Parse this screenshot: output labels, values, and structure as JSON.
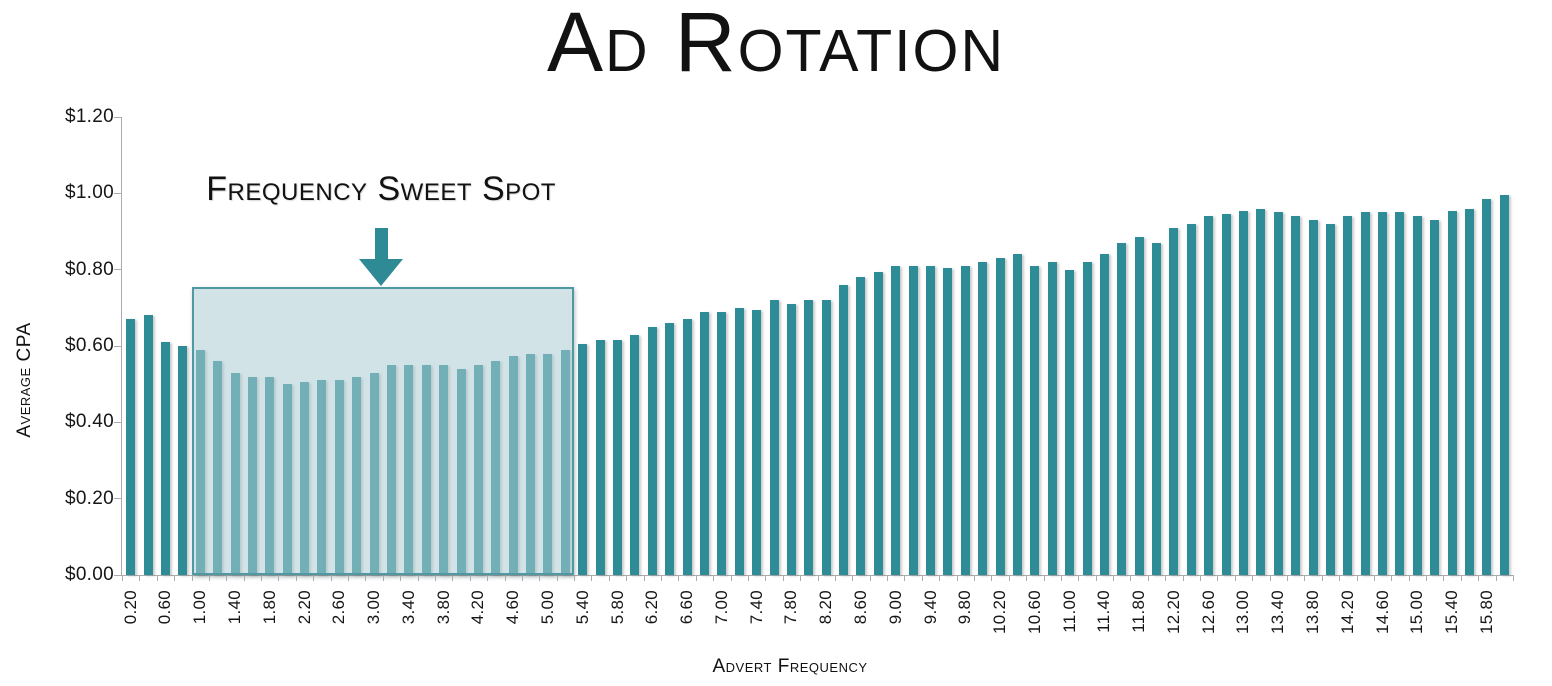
{
  "title": "Ad Rotation",
  "annotation": {
    "label": "Frequency Sweet Spot"
  },
  "y_axis": {
    "label": "Average CPA",
    "tick_labels": [
      "$1.20",
      "$1.00",
      "$0.80",
      "$0.60",
      "$0.40",
      "$0.20",
      "$0.00"
    ]
  },
  "x_axis": {
    "label": "Advert Frequency",
    "shown_tick_labels": [
      "0.20",
      "0.60",
      "1.00",
      "1.40",
      "1.80",
      "2.20",
      "2.60",
      "3.00",
      "3.40",
      "3.80",
      "4.20",
      "4.60",
      "5.00",
      "5.40",
      "5.80",
      "6.20",
      "6.60",
      "7.00",
      "7.40",
      "7.80",
      "8.20",
      "8.60",
      "9.00",
      "9.40",
      "9.80",
      "10.20",
      "10.60",
      "11.00",
      "11.40",
      "11.80",
      "12.20",
      "12.60",
      "13.00",
      "13.40",
      "13.80",
      "14.20",
      "14.60",
      "15.00",
      "15.40",
      "15.80"
    ]
  },
  "colors": {
    "bar": "#2e8c96",
    "highlight_fill": "rgba(172,204,209,0.55)",
    "highlight_border": "#4f99a2",
    "axis": "#a9adaf",
    "text": "#121212"
  },
  "chart_data": {
    "type": "bar",
    "title": "Ad Rotation",
    "xlabel": "Advert Frequency",
    "ylabel": "Average CPA",
    "ylim": [
      0,
      1.2
    ],
    "y_tick_step": 0.2,
    "grid": false,
    "legend": false,
    "x_label_every_n_bars": 2,
    "categories": [
      "0.20",
      "0.40",
      "0.60",
      "0.80",
      "1.00",
      "1.20",
      "1.40",
      "1.60",
      "1.80",
      "2.00",
      "2.20",
      "2.40",
      "2.60",
      "2.80",
      "3.00",
      "3.20",
      "3.40",
      "3.60",
      "3.80",
      "4.00",
      "4.20",
      "4.40",
      "4.60",
      "4.80",
      "5.00",
      "5.20",
      "5.40",
      "5.60",
      "5.80",
      "6.00",
      "6.20",
      "6.40",
      "6.60",
      "6.80",
      "7.00",
      "7.20",
      "7.40",
      "7.60",
      "7.80",
      "8.00",
      "8.20",
      "8.40",
      "8.60",
      "8.80",
      "9.00",
      "9.20",
      "9.40",
      "9.60",
      "9.80",
      "10.00",
      "10.20",
      "10.40",
      "10.60",
      "10.80",
      "11.00",
      "11.20",
      "11.40",
      "11.60",
      "11.80",
      "12.00",
      "12.20",
      "12.40",
      "12.60",
      "12.80",
      "13.00",
      "13.20",
      "13.40",
      "13.60",
      "13.80",
      "14.00",
      "14.20",
      "14.40",
      "14.60",
      "14.80",
      "15.00",
      "15.20",
      "15.40",
      "15.60",
      "15.80",
      "16.00"
    ],
    "values": [
      0.67,
      0.68,
      0.61,
      0.6,
      0.59,
      0.56,
      0.53,
      0.52,
      0.52,
      0.5,
      0.505,
      0.51,
      0.51,
      0.52,
      0.53,
      0.55,
      0.55,
      0.55,
      0.55,
      0.54,
      0.55,
      0.56,
      0.575,
      0.58,
      0.58,
      0.59,
      0.605,
      0.615,
      0.615,
      0.63,
      0.65,
      0.66,
      0.67,
      0.69,
      0.69,
      0.7,
      0.695,
      0.72,
      0.71,
      0.72,
      0.72,
      0.76,
      0.78,
      0.795,
      0.81,
      0.81,
      0.81,
      0.805,
      0.81,
      0.82,
      0.83,
      0.84,
      0.81,
      0.82,
      0.8,
      0.82,
      0.84,
      0.87,
      0.885,
      0.87,
      0.91,
      0.92,
      0.94,
      0.945,
      0.955,
      0.96,
      0.95,
      0.94,
      0.93,
      0.92,
      0.94,
      0.95,
      0.95,
      0.95,
      0.94,
      0.93,
      0.955,
      0.96,
      0.985,
      0.995
    ],
    "highlight_region": {
      "label": "Frequency Sweet Spot",
      "x_from": "1.00",
      "x_to": "5.20",
      "y_top": 0.755,
      "arrow_at_x": "3.00"
    }
  }
}
